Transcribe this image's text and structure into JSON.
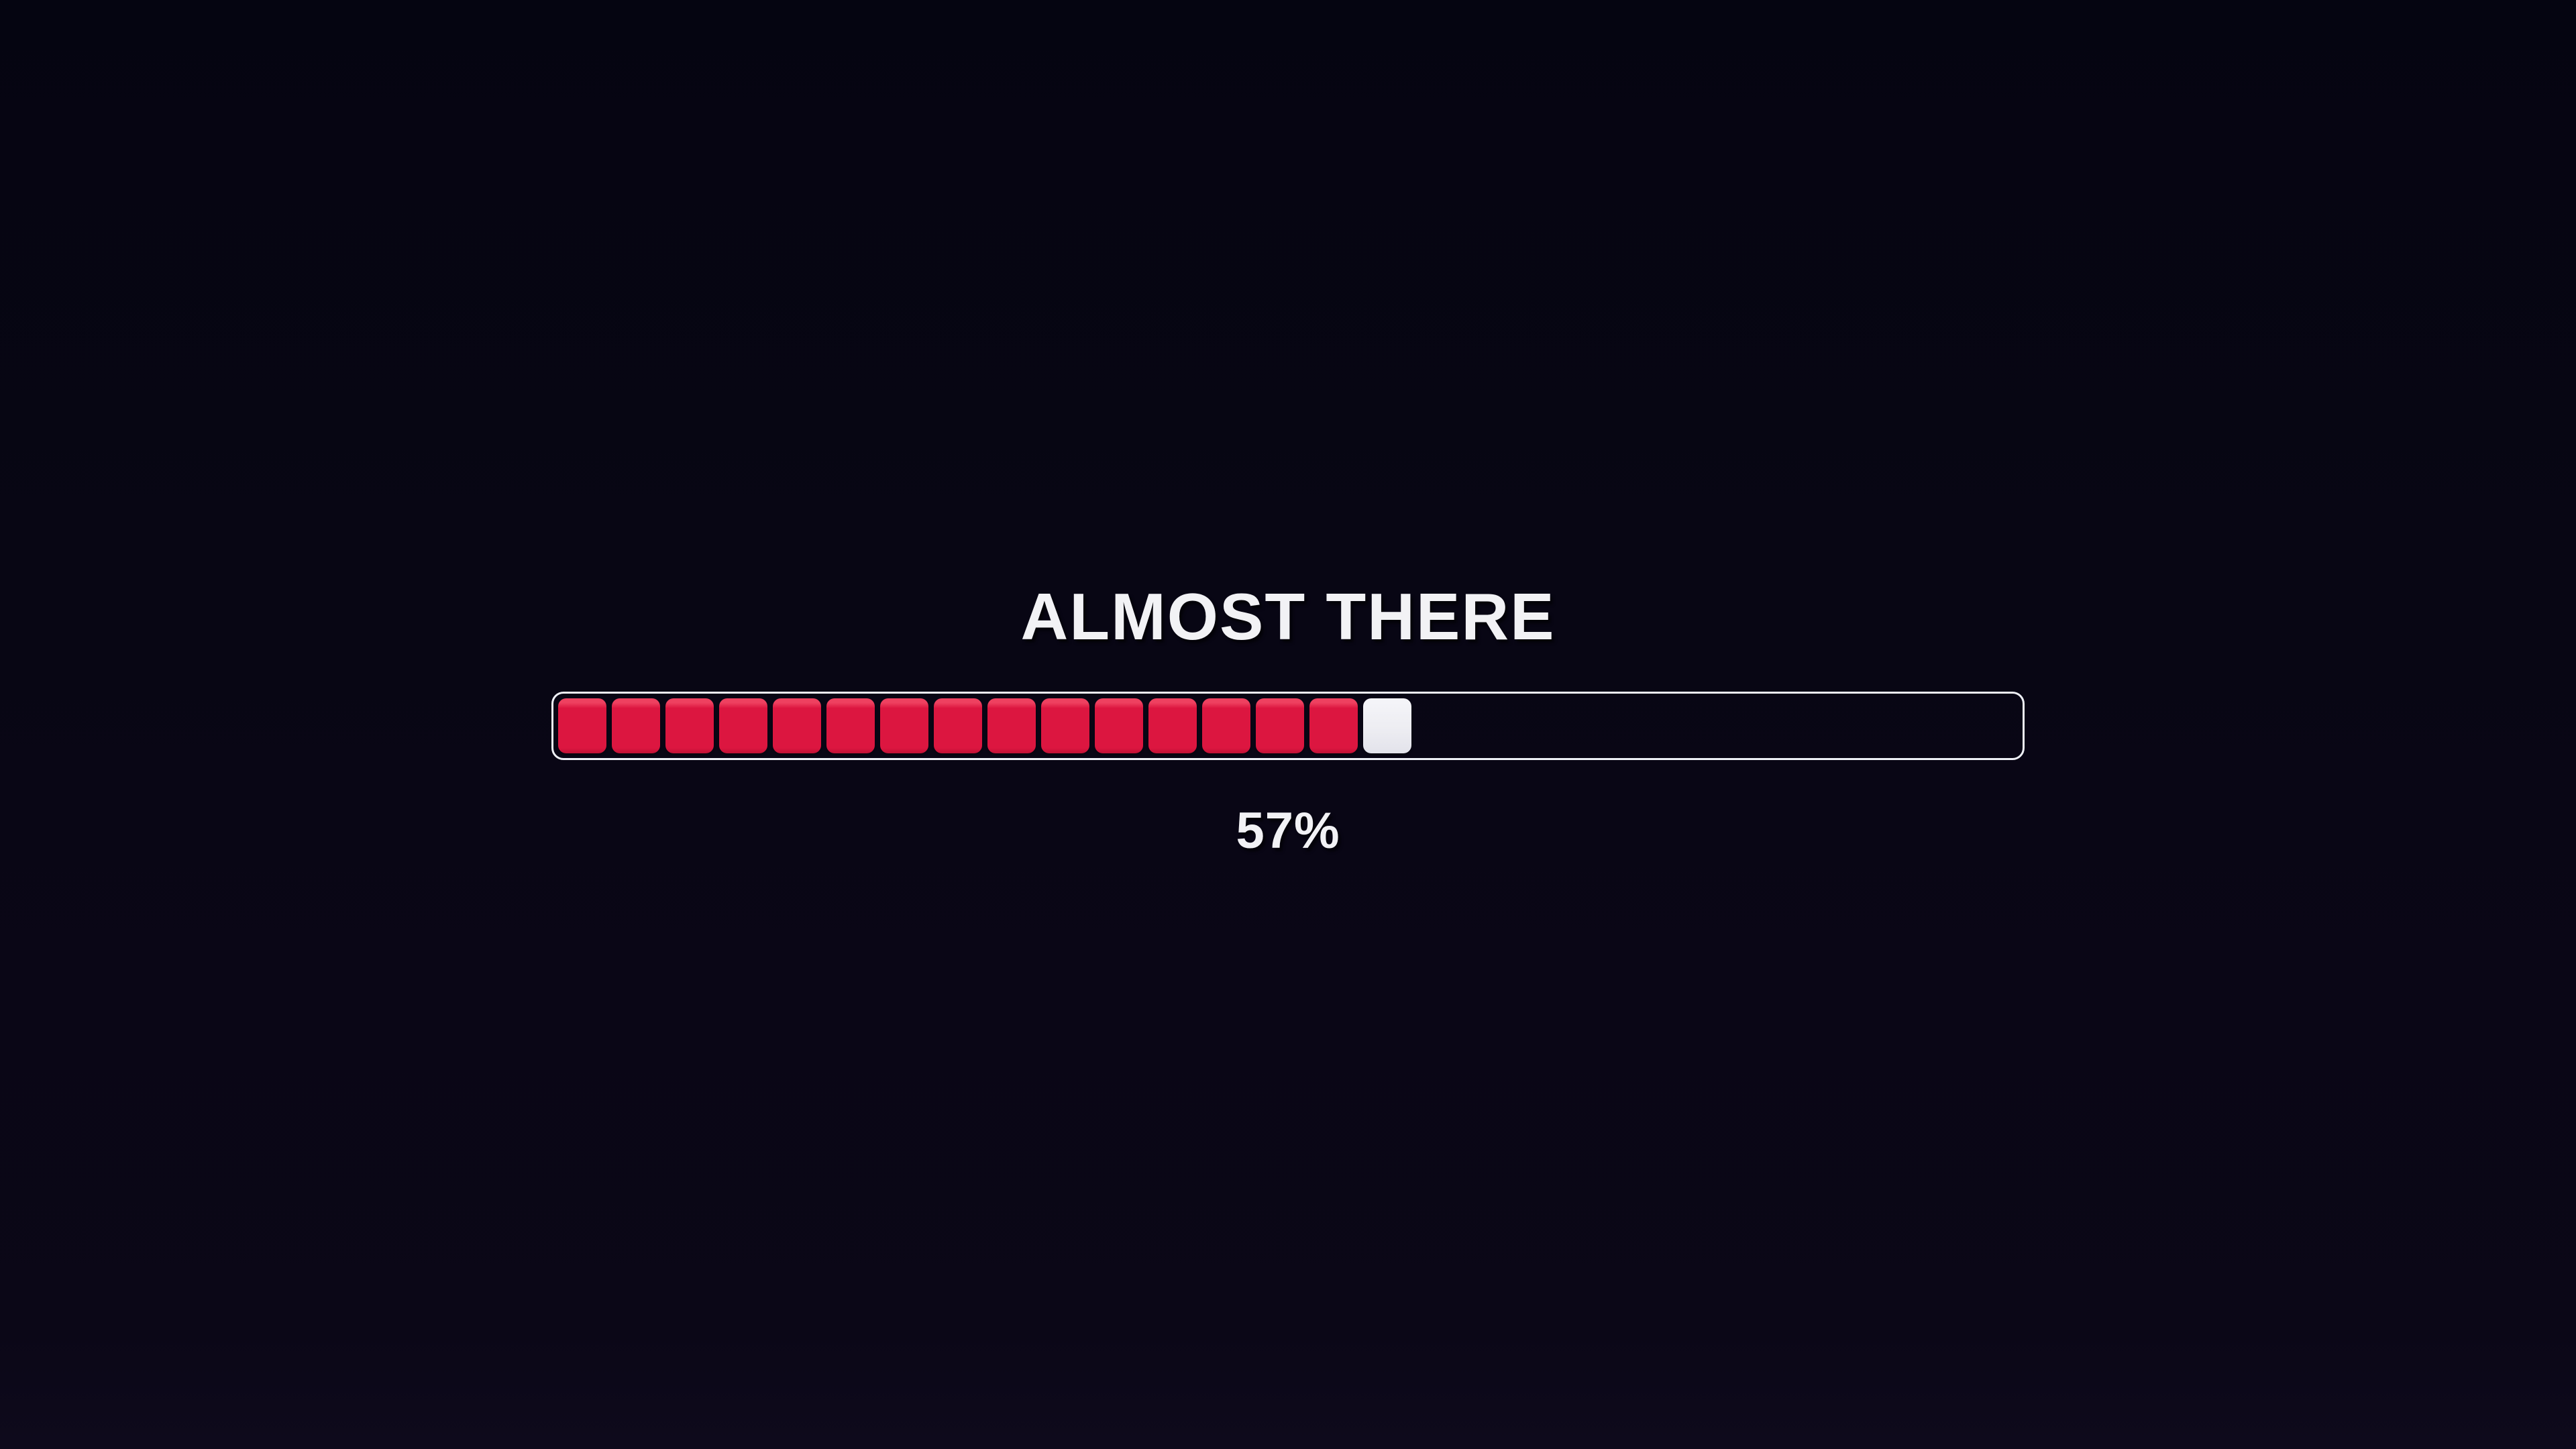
{
  "page": {
    "background_top": "#050511",
    "background_bottom": "#0b0717"
  },
  "loader": {
    "title": "ALMOST THERE",
    "percent_label": "57%",
    "percent_value": 57,
    "progress": {
      "cells": [
        "filled",
        "filled",
        "filled",
        "filled",
        "filled",
        "filled",
        "filled",
        "filled",
        "filled",
        "filled",
        "filled",
        "filled",
        "filled",
        "filled",
        "filled",
        "cursor"
      ],
      "filled_count": 15,
      "cursor_count": 1,
      "filled_color": "#dc1640",
      "filled_highlight": "#ee4160",
      "cursor_color": "#ededf2",
      "track_border_color": "#eef0f6",
      "text_color": "#f2f2f5"
    }
  }
}
